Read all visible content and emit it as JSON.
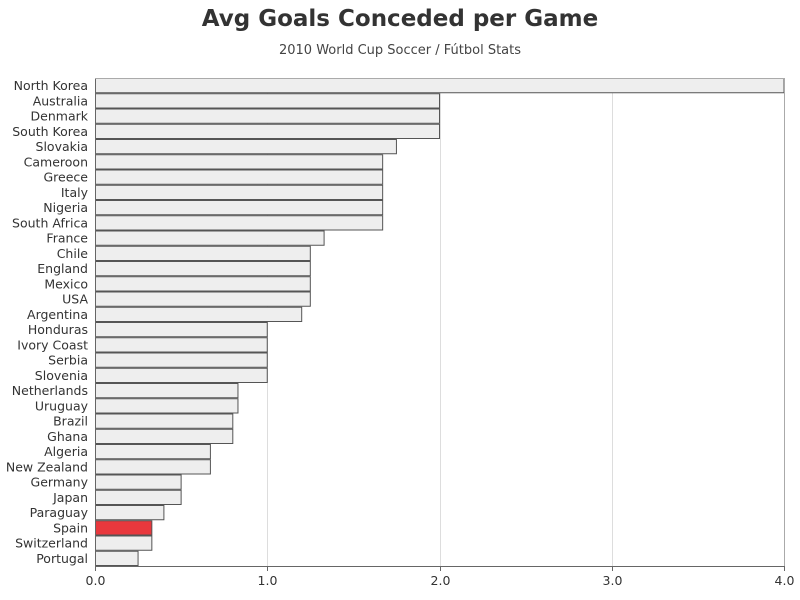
{
  "chart_data": {
    "type": "bar",
    "orientation": "horizontal",
    "title": "Avg Goals Conceded per Game",
    "subtitle": "2010 World Cup Soccer / Fútbol Stats",
    "xlabel": "",
    "ylabel": "",
    "xlim": [
      0,
      4
    ],
    "x_ticks": [
      "0.0",
      "1.0",
      "2.0",
      "3.0",
      "4.0"
    ],
    "grid": "vertical",
    "bar_color": "#eeeeee",
    "bar_outline": "#555555",
    "highlight_color": "#e8383d",
    "highlight": "Spain",
    "categories": [
      "North Korea",
      "Australia",
      "Denmark",
      "South Korea",
      "Slovakia",
      "Cameroon",
      "Greece",
      "Italy",
      "Nigeria",
      "South Africa",
      "France",
      "Chile",
      "England",
      "Mexico",
      "USA",
      "Argentina",
      "Honduras",
      "Ivory Coast",
      "Serbia",
      "Slovenia",
      "Netherlands",
      "Uruguay",
      "Brazil",
      "Ghana",
      "Algeria",
      "New Zealand",
      "Germany",
      "Japan",
      "Paraguay",
      "Spain",
      "Switzerland",
      "Portugal"
    ],
    "values": [
      4.0,
      2.0,
      2.0,
      2.0,
      1.75,
      1.67,
      1.67,
      1.67,
      1.67,
      1.67,
      1.33,
      1.25,
      1.25,
      1.25,
      1.25,
      1.2,
      1.0,
      1.0,
      1.0,
      1.0,
      0.83,
      0.83,
      0.8,
      0.8,
      0.67,
      0.67,
      0.5,
      0.5,
      0.4,
      0.33,
      0.33,
      0.25
    ]
  }
}
